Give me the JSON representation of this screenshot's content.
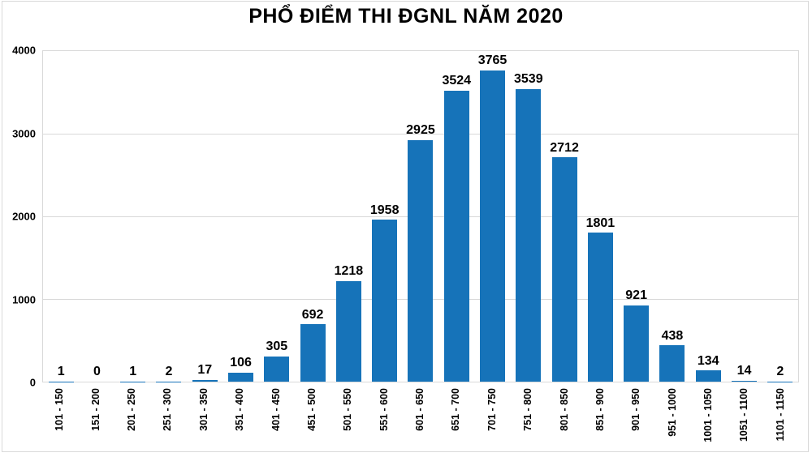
{
  "chart_data": {
    "type": "bar",
    "title": "PHỔ ĐIỂM THI ĐGNL NĂM 2020",
    "categories": [
      "101 - 150",
      "151 - 200",
      "201 - 250",
      "251 - 300",
      "301 - 350",
      "351 - 400",
      "401 - 450",
      "451 - 500",
      "501 - 550",
      "551 - 600",
      "601 - 650",
      "651 - 700",
      "701 - 750",
      "751 - 800",
      "801 - 850",
      "851 - 900",
      "901 - 950",
      "951 - 1000",
      "1001 - 1050",
      "1051 - 1100",
      "1101 - 1150"
    ],
    "values": [
      1,
      0,
      1,
      2,
      17,
      106,
      305,
      692,
      1218,
      1958,
      2925,
      3524,
      3765,
      3539,
      2712,
      1801,
      921,
      438,
      134,
      14,
      2
    ],
    "xlabel": "",
    "ylabel": "",
    "ylim": [
      0,
      4000
    ],
    "yticks": [
      0,
      1000,
      2000,
      3000,
      4000
    ],
    "grid": "horizontal",
    "legend": "none",
    "value_labels": true,
    "colors": {
      "bar": "#1673b9",
      "gridline": "#d9d9d9",
      "frame": "#d9d9d9",
      "text": "#000000",
      "background": "#ffffff"
    }
  }
}
